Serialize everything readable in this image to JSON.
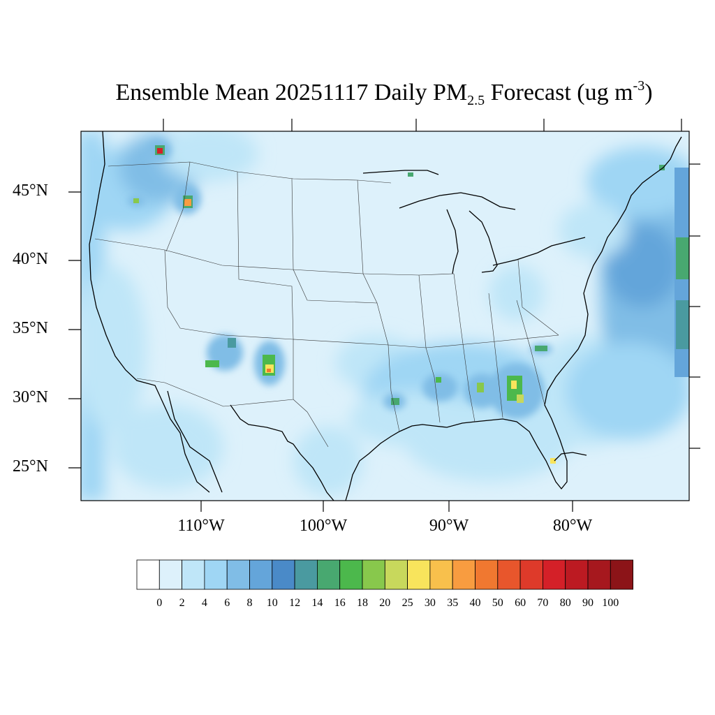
{
  "title": {
    "prefix": "Ensemble Mean 20251117 Daily PM",
    "subscript": "2.5",
    "middle": " Forecast (ug m",
    "superscript": "-3",
    "suffix": ")"
  },
  "map": {
    "projection": "lambert conformal",
    "region": "Continental United States",
    "lat_labels": [
      "45°N",
      "40°N",
      "35°N",
      "30°N",
      "25°N"
    ],
    "lon_labels": [
      "110°W",
      "100°W",
      "90°W",
      "80°W"
    ]
  },
  "colorbar": {
    "labels": [
      "0",
      "2",
      "4",
      "6",
      "8",
      "10",
      "12",
      "14",
      "16",
      "18",
      "20",
      "25",
      "30",
      "35",
      "40",
      "50",
      "60",
      "70",
      "80",
      "90",
      "100"
    ],
    "colors": [
      "#ffffff",
      "#ddf1fb",
      "#bfe6f8",
      "#9fd6f4",
      "#80bde6",
      "#64a5da",
      "#4a8ac8",
      "#4a9aa0",
      "#48a870",
      "#4cb84c",
      "#88c84c",
      "#c8d85c",
      "#f8e45c",
      "#f8c04c",
      "#f89c40",
      "#f07830",
      "#e8562c",
      "#de3a2a",
      "#d42028",
      "#bc1a22",
      "#a6181e",
      "#8c1418"
    ]
  },
  "hotspots": [
    {
      "name": "northern-idaho-montana",
      "lon": -113.5,
      "lat": 47.8,
      "level": "60"
    },
    {
      "name": "central-idaho",
      "lon": -114.6,
      "lat": 44.2,
      "level": "35"
    },
    {
      "name": "eastern-oregon",
      "lon": -117.9,
      "lat": 44.8,
      "level": "20"
    },
    {
      "name": "eastern-arizona",
      "lon": -109.6,
      "lat": 33.5,
      "level": "20"
    },
    {
      "name": "southern-new-mexico",
      "lon": -105.3,
      "lat": 33.0,
      "level": "30"
    },
    {
      "name": "southern-georgia",
      "lon": -83.2,
      "lat": 31.5,
      "level": "25"
    },
    {
      "name": "southern-alabama",
      "lon": -86.0,
      "lat": 31.6,
      "level": "20"
    },
    {
      "name": "mississippi",
      "lon": -89.8,
      "lat": 31.2,
      "level": "18"
    },
    {
      "name": "louisiana",
      "lon": -93.0,
      "lat": 30.5,
      "level": "18"
    },
    {
      "name": "south-carolina",
      "lon": -81.0,
      "lat": 34.2,
      "level": "16"
    },
    {
      "name": "south-florida",
      "lon": -80.8,
      "lat": 26.6,
      "level": "25"
    },
    {
      "name": "upper-michigan",
      "lon": -88.9,
      "lat": 47.3,
      "level": "18"
    }
  ]
}
